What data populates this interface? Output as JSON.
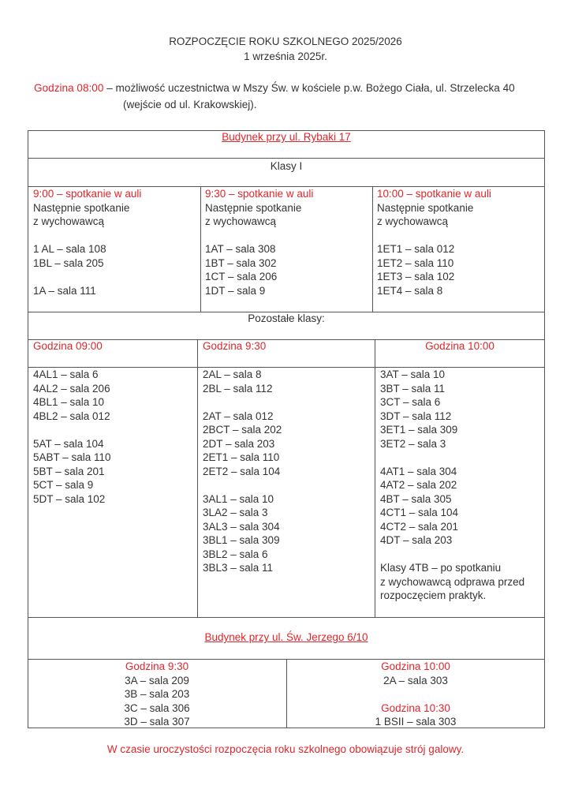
{
  "header": {
    "title": "ROZPOCZĘCIE ROKU SZKOLNEGO 2025/2026",
    "date": "1 września 2025r."
  },
  "mass": {
    "time_label": "Godzina 08:00",
    "text_line1": "– możliwość uczestnictwa w Mszy Św. w kościele p.w. Bożego Ciała, ul. Strzelecka 40",
    "text_line2": "(wejście od ul. Krakowskiej)."
  },
  "building1": {
    "title": "Budynek przy ul. Rybaki 17",
    "first_classes": {
      "title": "Klasy I",
      "columns": [
        {
          "heading": "9:00 – spotkanie w auli",
          "lines": [
            "Następnie spotkanie",
            "z wychowawcą",
            "",
            "1 AL – sala 108",
            "1BL – sala 205",
            "",
            "1A – sala 111"
          ]
        },
        {
          "heading": "9:30 – spotkanie w auli",
          "lines": [
            "Następnie spotkanie",
            "z wychowawcą",
            "",
            "1AT – sala 308",
            "1BT – sala 302",
            "1CT – sala 206",
            "1DT – sala 9"
          ]
        },
        {
          "heading": "10:00 – spotkanie w auli",
          "lines": [
            "Następnie spotkanie",
            "z wychowawcą",
            "",
            "1ET1 – sala 012",
            "1ET2 – sala 110",
            "1ET3 – sala 102",
            "1ET4 – sala 8"
          ]
        }
      ]
    },
    "other_classes": {
      "title": "Pozostałe klasy:",
      "columns": [
        {
          "heading": "Godzina 09:00",
          "lines": [
            "4AL1 – sala 6",
            "4AL2 – sala 206",
            "4BL1 – sala 10",
            "4BL2 – sala 012",
            "",
            "5AT – sala 104",
            "5ABT – sala 110",
            "5BT – sala 201",
            "5CT – sala 9",
            "5DT – sala 102"
          ]
        },
        {
          "heading": "Godzina 9:30",
          "lines": [
            "2AL – sala 8",
            "2BL – sala 112",
            "",
            "2AT – sala 012",
            "2BCT – sala 202",
            "2DT – sala 203",
            "2ET1 – sala 110",
            "2ET2 – sala 104",
            "",
            "3AL1 – sala 10",
            "3LA2 – sala 3",
            "3AL3 – sala 304",
            "3BL1 – sala 309",
            "3BL2 – sala 6",
            "3BL3 – sala 11"
          ]
        },
        {
          "heading": "Godzina 10:00",
          "lines": [
            "3AT – sala 10",
            "3BT – sala 11",
            "3CT – sala 6",
            "3DT – sala 112",
            "3ET1 – sala 309",
            "3ET2 – sala 3",
            "",
            "4AT1 – sala 304",
            "4AT2 – sala 202",
            "4BT – sala 305",
            "4CT1 – sala 104",
            "4CT2 – sala 201",
            "4DT – sala 203",
            "",
            "Klasy 4TB – po spotkaniu",
            "z wychowawcą odprawa przed",
            "rozpoczęciem praktyk."
          ]
        }
      ]
    }
  },
  "building2": {
    "title": "Budynek przy ul. Św. Jerzego 6/10",
    "columns": [
      {
        "lines": [
          {
            "text": "Godzina 9:30",
            "red": true
          },
          {
            "text": "3A – sala 209"
          },
          {
            "text": "3B – sala 203"
          },
          {
            "text": "3C – sala 306"
          },
          {
            "text": "3D – sala 307"
          }
        ]
      },
      {
        "lines": [
          {
            "text": "Godzina 10:00",
            "red": true
          },
          {
            "text": "2A – sala 303"
          },
          {
            "text": ""
          },
          {
            "text": "Godzina 10:30",
            "red": true
          },
          {
            "text": "1 BSII – sala 303"
          }
        ]
      }
    ]
  },
  "footer": {
    "note": "W czasie uroczystości rozpoczęcia roku szkolnego obowiązuje strój galowy."
  },
  "colors": {
    "accent": "#e0262b",
    "text": "#333333",
    "border": "#555555"
  }
}
